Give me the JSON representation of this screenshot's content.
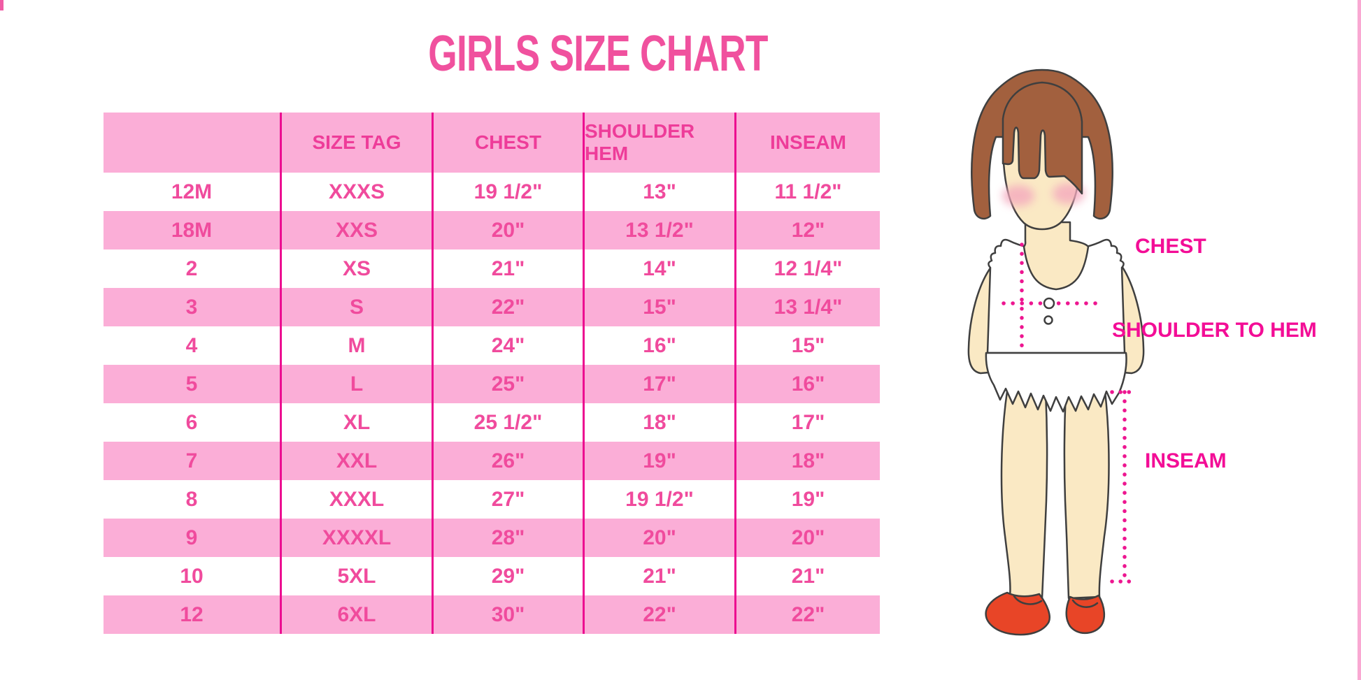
{
  "title": "GIRLS SIZE CHART",
  "chart_data": {
    "type": "table",
    "title": "GIRLS SIZE CHART",
    "columns": [
      "",
      "SIZE TAG",
      "CHEST",
      "SHOULDER HEM",
      "INSEAM"
    ],
    "rows": [
      [
        "12M",
        "XXXS",
        "19 1/2\"",
        "13\"",
        "11 1/2\""
      ],
      [
        "18M",
        "XXS",
        "20\"",
        "13 1/2\"",
        "12\""
      ],
      [
        "2",
        "XS",
        "21\"",
        "14\"",
        "12 1/4\""
      ],
      [
        "3",
        "S",
        "22\"",
        "15\"",
        "13 1/4\""
      ],
      [
        "4",
        "M",
        "24\"",
        "16\"",
        "15\""
      ],
      [
        "5",
        "L",
        "25\"",
        "17\"",
        "16\""
      ],
      [
        "6",
        "XL",
        "25 1/2\"",
        "18\"",
        "17\""
      ],
      [
        "7",
        "XXL",
        "26\"",
        "19\"",
        "18\""
      ],
      [
        "8",
        "XXXL",
        "27\"",
        "19 1/2\"",
        "19\""
      ],
      [
        "9",
        "XXXXL",
        "28\"",
        "20\"",
        "20\""
      ],
      [
        "10",
        "5XL",
        "29\"",
        "21\"",
        "21\""
      ],
      [
        "12",
        "6XL",
        "30\"",
        "22\"",
        "22\""
      ]
    ],
    "zebra_striping": "white / pink alternating rows, header pink",
    "legend_position": "none",
    "grid": "vertical magenta column dividers only"
  },
  "diagram": {
    "chest_label": "CHEST",
    "shoulder_to_hem_label": "SHOULDER TO HEM",
    "inseam_label": "INSEAM"
  },
  "colors": {
    "title_pink": "#F0519E",
    "header_text_pink": "#EE3C99",
    "cell_text_pink": "#F04B9D",
    "row_pink": "#FBAED7",
    "divider_magenta": "#EC0D90",
    "label_magenta": "#F30D96",
    "dotted_line_magenta": "#ED1690",
    "hair_brown": "#A2603E",
    "skin": "#FAE9C4",
    "blush": "#F4A9BE",
    "shoe_red": "#E84527",
    "outline": "#3F3F3F"
  }
}
